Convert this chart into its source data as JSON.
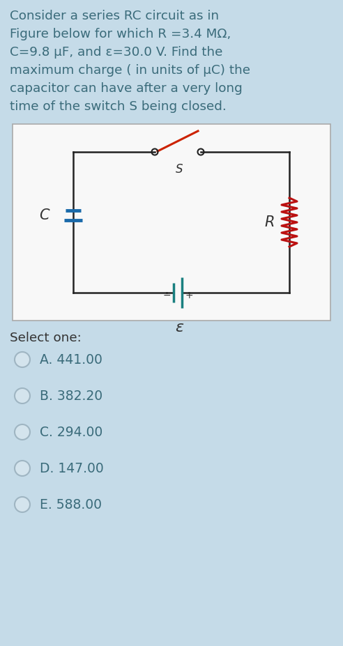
{
  "bg_color": "#c5dbe8",
  "text_color": "#3a6b7a",
  "title_lines": [
    "Consider a series RC circuit as in",
    "Figure below for which R =3.4 MΩ,",
    "C=9.8 μF, and ε=30.0 V. Find the",
    "maximum charge ( in units of μC) the",
    "capacitor can have after a very long",
    "time of the switch S being closed."
  ],
  "circuit_bg": "#f8f8f8",
  "circuit_border": "#aaaaaa",
  "select_one_text": "Select one:",
  "options": [
    "A. 441.00",
    "B. 382.20",
    "C. 294.00",
    "D. 147.00",
    "E. 588.00"
  ],
  "font_size_title": 13.2,
  "font_size_options": 13.5,
  "font_size_select": 13.2,
  "wire_color": "#222222",
  "cap_color": "#1a6aaa",
  "res_color": "#bb1111",
  "bat_color": "#1a8080",
  "switch_color": "#cc2200",
  "label_color": "#333333"
}
